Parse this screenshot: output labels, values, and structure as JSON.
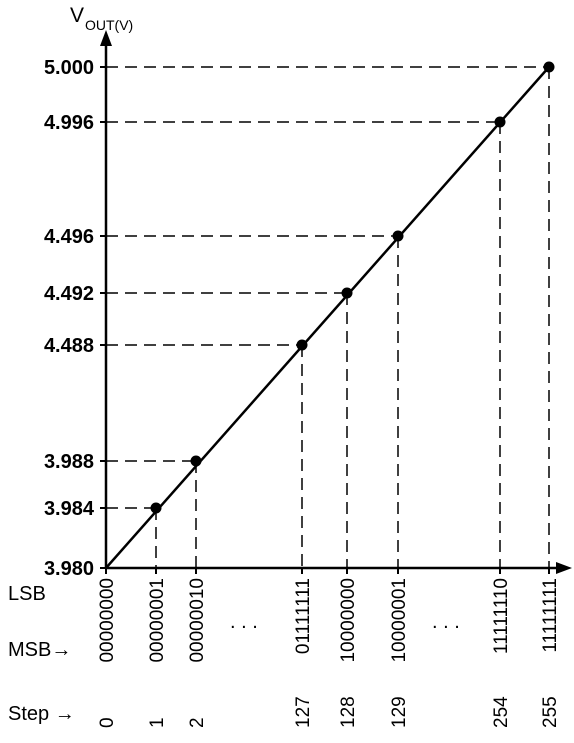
{
  "chart_data": {
    "type": "line",
    "ylabel_main": "V",
    "ylabel_sub": "OUT(V)",
    "y_ticks": [
      "3.980",
      "3.984",
      "3.988",
      "4.488",
      "4.492",
      "4.496",
      "4.996",
      "5.000"
    ],
    "row_labels": {
      "lsb": "LSB",
      "msb": "MSB→",
      "step": "Step →"
    },
    "ellipsis": ". . .",
    "series": [
      {
        "points": [
          {
            "step": "0",
            "code": "00000000",
            "v": "3.980"
          },
          {
            "step": "1",
            "code": "00000001",
            "v": "3.984"
          },
          {
            "step": "2",
            "code": "00000010",
            "v": "3.988"
          },
          {
            "step": "127",
            "code": "01111111",
            "v": "4.488"
          },
          {
            "step": "128",
            "code": "10000000",
            "v": "4.492"
          },
          {
            "step": "129",
            "code": "10000001",
            "v": "4.496"
          },
          {
            "step": "254",
            "code": "11111110",
            "v": "4.996"
          },
          {
            "step": "255",
            "code": "11111111",
            "v": "5.000"
          }
        ]
      }
    ]
  }
}
